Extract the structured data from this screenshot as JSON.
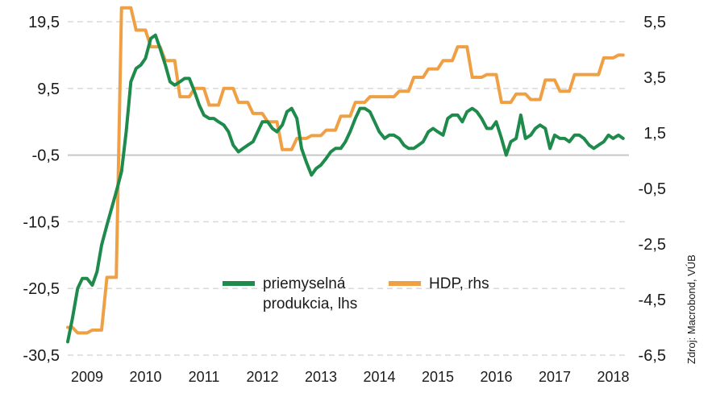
{
  "chart_data": {
    "type": "line",
    "title": "",
    "source": "Zdroj: Macrobond, VÚB",
    "x_ticks": [
      "2009",
      "2010",
      "2011",
      "2012",
      "2013",
      "2014",
      "2015",
      "2016",
      "2017",
      "2018"
    ],
    "left_axis": {
      "ticks": [
        "19,5",
        "9,5",
        "-0,5",
        "-10,5",
        "-20,5",
        "-30,5"
      ],
      "ylim": [
        -30.5,
        19.5
      ]
    },
    "right_axis": {
      "ticks": [
        "5,5",
        "3,5",
        "1,5",
        "-0,5",
        "-2,5",
        "-4,5",
        "-6,5"
      ],
      "ylim": [
        -6.5,
        5.5
      ]
    },
    "grid": "horizontal dashed",
    "legend_position": "center",
    "series": [
      {
        "name": "priemyselná produkcia, lhs",
        "legend_lines": [
          "priemyselná",
          "produkcia, lhs"
        ],
        "axis": "left",
        "color": "#1e8a4c",
        "x": [
          2009.0,
          2009.08,
          2009.17,
          2009.25,
          2009.33,
          2009.42,
          2009.5,
          2009.58,
          2009.67,
          2009.75,
          2009.83,
          2009.92,
          2010.0,
          2010.08,
          2010.17,
          2010.25,
          2010.33,
          2010.42,
          2010.5,
          2010.58,
          2010.67,
          2010.75,
          2010.83,
          2010.92,
          2011.0,
          2011.08,
          2011.17,
          2011.25,
          2011.33,
          2011.42,
          2011.5,
          2011.58,
          2011.67,
          2011.75,
          2011.83,
          2011.92,
          2012.0,
          2012.08,
          2012.17,
          2012.25,
          2012.33,
          2012.42,
          2012.5,
          2012.58,
          2012.67,
          2012.75,
          2012.83,
          2012.92,
          2013.0,
          2013.08,
          2013.17,
          2013.25,
          2013.33,
          2013.42,
          2013.5,
          2013.58,
          2013.67,
          2013.75,
          2013.83,
          2013.92,
          2014.0,
          2014.08,
          2014.17,
          2014.25,
          2014.33,
          2014.42,
          2014.5,
          2014.58,
          2014.67,
          2014.75,
          2014.83,
          2014.92,
          2015.0,
          2015.08,
          2015.17,
          2015.25,
          2015.33,
          2015.42,
          2015.5,
          2015.58,
          2015.67,
          2015.75,
          2015.83,
          2015.92,
          2016.0,
          2016.08,
          2016.17,
          2016.25,
          2016.33,
          2016.42,
          2016.5,
          2016.58,
          2016.67,
          2016.75,
          2016.83,
          2016.92,
          2017.0,
          2017.08,
          2017.17,
          2017.25,
          2017.33,
          2017.42,
          2017.5,
          2017.58,
          2017.67,
          2017.75,
          2017.83,
          2017.92,
          2018.0,
          2018.08,
          2018.17,
          2018.25,
          2018.33,
          2018.42,
          2018.5
        ],
        "values": [
          -28.5,
          -25.0,
          -20.5,
          -19.0,
          -19.0,
          -20.0,
          -18.0,
          -14.0,
          -11.0,
          -8.5,
          -6.0,
          -3.0,
          3.0,
          10.5,
          12.5,
          13.0,
          14.0,
          17.0,
          17.5,
          15.5,
          13.0,
          10.5,
          10.0,
          10.5,
          11.0,
          11.0,
          9.0,
          7.0,
          5.5,
          5.0,
          5.0,
          4.5,
          4.0,
          3.0,
          1.0,
          0.0,
          0.5,
          1.0,
          1.5,
          3.0,
          4.5,
          4.5,
          3.5,
          3.0,
          4.0,
          6.0,
          6.5,
          5.0,
          0.5,
          -1.5,
          -3.5,
          -2.5,
          -2.0,
          -1.0,
          0.0,
          0.5,
          0.5,
          1.5,
          3.0,
          5.0,
          6.5,
          6.5,
          6.0,
          4.5,
          3.0,
          2.0,
          2.5,
          2.5,
          2.0,
          1.0,
          0.5,
          0.5,
          1.0,
          1.5,
          3.0,
          3.5,
          3.0,
          2.5,
          5.0,
          5.5,
          5.5,
          4.5,
          6.0,
          6.5,
          6.0,
          5.0,
          3.5,
          3.5,
          4.5,
          2.0,
          -0.5,
          1.5,
          2.0,
          5.5,
          2.0,
          2.5,
          3.5,
          4.0,
          3.5,
          0.5,
          2.5,
          2.0,
          2.0,
          1.5,
          2.5,
          2.5,
          2.0,
          1.0,
          0.5,
          1.0,
          1.5,
          2.5,
          2.0,
          2.5,
          2.0
        ]
      },
      {
        "name": "HDP, rhs",
        "axis": "right",
        "color": "#f0a044",
        "x": [
          2009.0,
          2009.08,
          2009.17,
          2009.25,
          2009.33,
          2009.42,
          2009.5,
          2009.58,
          2009.67,
          2009.75,
          2009.83,
          2009.92,
          2010.0,
          2010.08,
          2010.17,
          2010.25,
          2010.33,
          2010.42,
          2010.5,
          2010.58,
          2010.67,
          2010.75,
          2010.83,
          2010.92,
          2011.0,
          2011.08,
          2011.17,
          2011.25,
          2011.33,
          2011.42,
          2011.5,
          2011.58,
          2011.67,
          2011.75,
          2011.83,
          2011.92,
          2012.0,
          2012.08,
          2012.17,
          2012.25,
          2012.33,
          2012.42,
          2012.5,
          2012.58,
          2012.67,
          2012.75,
          2012.83,
          2012.92,
          2013.0,
          2013.08,
          2013.17,
          2013.25,
          2013.33,
          2013.42,
          2013.5,
          2013.58,
          2013.67,
          2013.75,
          2013.83,
          2013.92,
          2014.0,
          2014.08,
          2014.17,
          2014.25,
          2014.33,
          2014.42,
          2014.5,
          2014.58,
          2014.67,
          2014.75,
          2014.83,
          2014.92,
          2015.0,
          2015.08,
          2015.17,
          2015.25,
          2015.33,
          2015.42,
          2015.5,
          2015.58,
          2015.67,
          2015.75,
          2015.83,
          2015.92,
          2016.0,
          2016.08,
          2016.17,
          2016.25,
          2016.33,
          2016.42,
          2016.5,
          2016.58,
          2016.67,
          2016.75,
          2016.83,
          2016.92,
          2017.0,
          2017.08,
          2017.17,
          2017.25,
          2017.33,
          2017.42,
          2017.5,
          2017.58,
          2017.67,
          2017.75,
          2017.83,
          2017.92,
          2018.0,
          2018.08,
          2018.17,
          2018.25,
          2018.33,
          2018.42,
          2018.5
        ],
        "values": [
          -5.5,
          -5.5,
          -5.7,
          -5.7,
          -5.7,
          -5.6,
          -5.6,
          -5.6,
          -3.7,
          -3.7,
          -3.7,
          6.0,
          6.0,
          6.0,
          5.2,
          5.2,
          5.2,
          4.6,
          4.6,
          4.6,
          4.1,
          4.1,
          4.1,
          2.8,
          2.8,
          2.8,
          3.1,
          3.1,
          3.1,
          2.5,
          2.5,
          2.5,
          3.1,
          3.1,
          3.1,
          2.6,
          2.6,
          2.6,
          2.2,
          2.2,
          2.2,
          1.9,
          1.9,
          1.9,
          0.9,
          0.9,
          0.9,
          1.3,
          1.3,
          1.3,
          1.4,
          1.4,
          1.4,
          1.6,
          1.6,
          1.6,
          2.1,
          2.1,
          2.1,
          2.6,
          2.6,
          2.6,
          2.8,
          2.8,
          2.8,
          2.8,
          2.8,
          2.8,
          3.0,
          3.0,
          3.0,
          3.5,
          3.5,
          3.5,
          3.8,
          3.8,
          3.8,
          4.1,
          4.1,
          4.1,
          4.6,
          4.6,
          4.6,
          3.5,
          3.5,
          3.5,
          3.6,
          3.6,
          3.6,
          2.6,
          2.6,
          2.6,
          2.9,
          2.9,
          2.9,
          2.7,
          2.7,
          2.7,
          3.4,
          3.4,
          3.4,
          3.0,
          3.0,
          3.0,
          3.6,
          3.6,
          3.6,
          3.6,
          3.6,
          3.6,
          4.2,
          4.2,
          4.2,
          4.3,
          4.3
        ]
      }
    ]
  }
}
